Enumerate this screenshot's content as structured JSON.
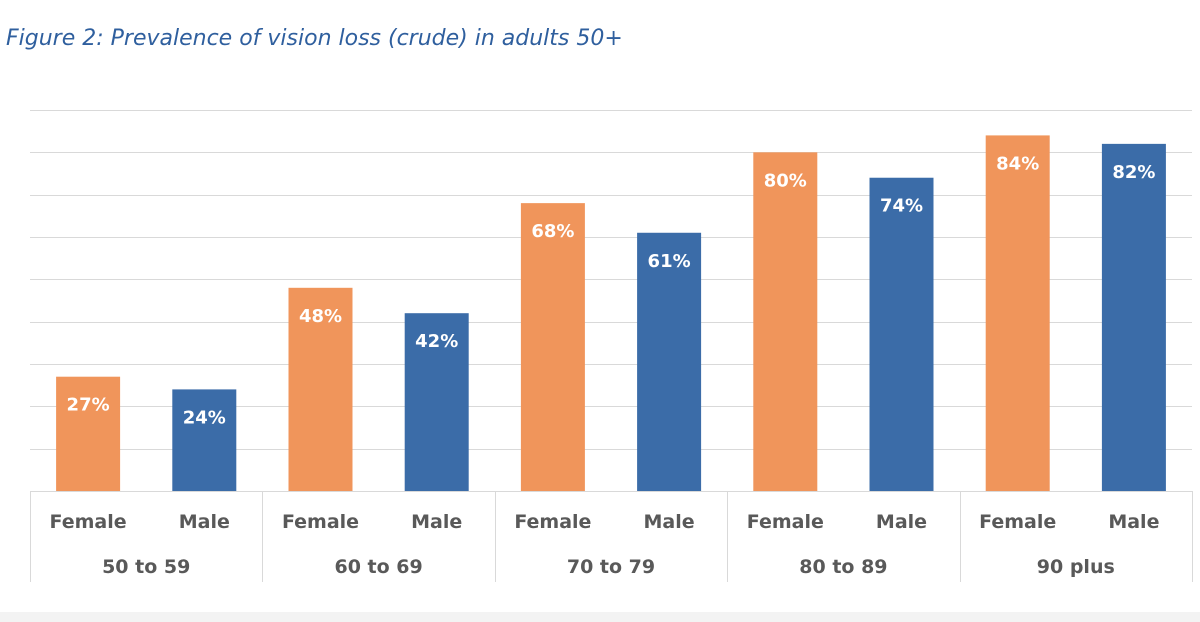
{
  "title": "Figure 2: Prevalence of vision loss (crude) in adults 50+",
  "colors": {
    "female": "#f0955b",
    "male": "#3b6ca8",
    "grid": "#d9d9d9",
    "text": "#595959",
    "title": "#2f5f9e"
  },
  "chart_data": {
    "type": "bar",
    "title": "Figure 2: Prevalence of vision loss (crude) in adults 50+",
    "xlabel": "",
    "ylabel": "",
    "ylim": [
      0,
      90
    ],
    "grid": true,
    "legend": "none",
    "groups": [
      {
        "label": "50 to 59",
        "bars": [
          {
            "category": "Female",
            "value": 27,
            "label": "27%"
          },
          {
            "category": "Male",
            "value": 24,
            "label": "24%"
          }
        ]
      },
      {
        "label": "60 to 69",
        "bars": [
          {
            "category": "Female",
            "value": 48,
            "label": "48%"
          },
          {
            "category": "Male",
            "value": 42,
            "label": "42%"
          }
        ]
      },
      {
        "label": "70 to 79",
        "bars": [
          {
            "category": "Female",
            "value": 68,
            "label": "68%"
          },
          {
            "category": "Male",
            "value": 61,
            "label": "61%"
          }
        ]
      },
      {
        "label": "80 to 89",
        "bars": [
          {
            "category": "Female",
            "value": 80,
            "label": "80%"
          },
          {
            "category": "Male",
            "value": 74,
            "label": "74%"
          }
        ]
      },
      {
        "label": "90 plus",
        "bars": [
          {
            "category": "Female",
            "value": 84,
            "label": "84%"
          },
          {
            "category": "Male",
            "value": 82,
            "label": "82%"
          }
        ]
      }
    ]
  }
}
